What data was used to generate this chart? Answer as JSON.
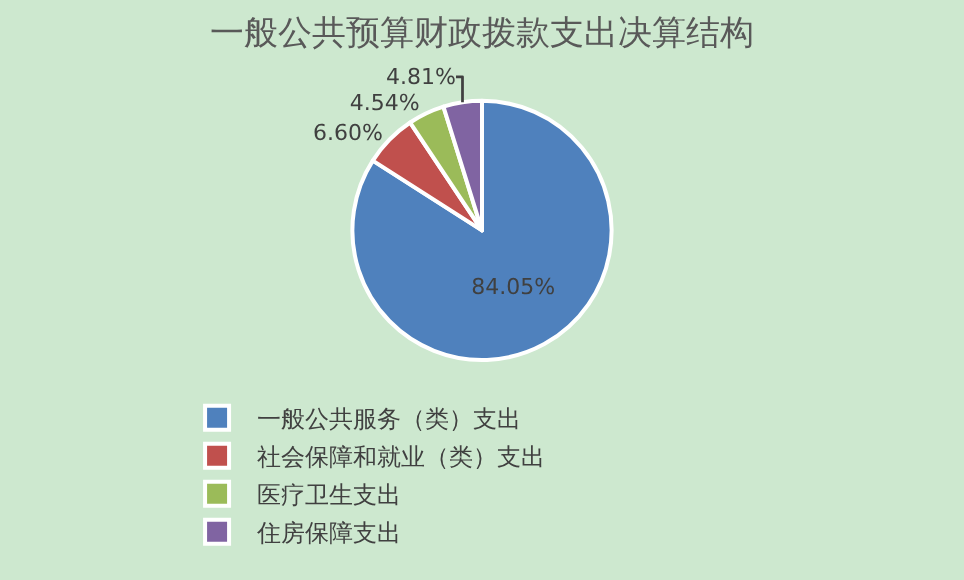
{
  "chart_data": {
    "type": "pie",
    "title": "一般公共预算财政拨款支出决算结构",
    "categories": [
      "一般公共服务（类）支出",
      "社会保障和就业（类）支出",
      "医疗卫生支出",
      "住房保障支出"
    ],
    "values": [
      84.05,
      6.6,
      4.54,
      4.81
    ],
    "colors": [
      "#4f81bd",
      "#c0504d",
      "#9bbb59",
      "#8064a2"
    ],
    "value_labels": [
      "84.05%",
      "6.60%",
      "4.54%",
      "4.81%"
    ],
    "legend": "bottom"
  }
}
